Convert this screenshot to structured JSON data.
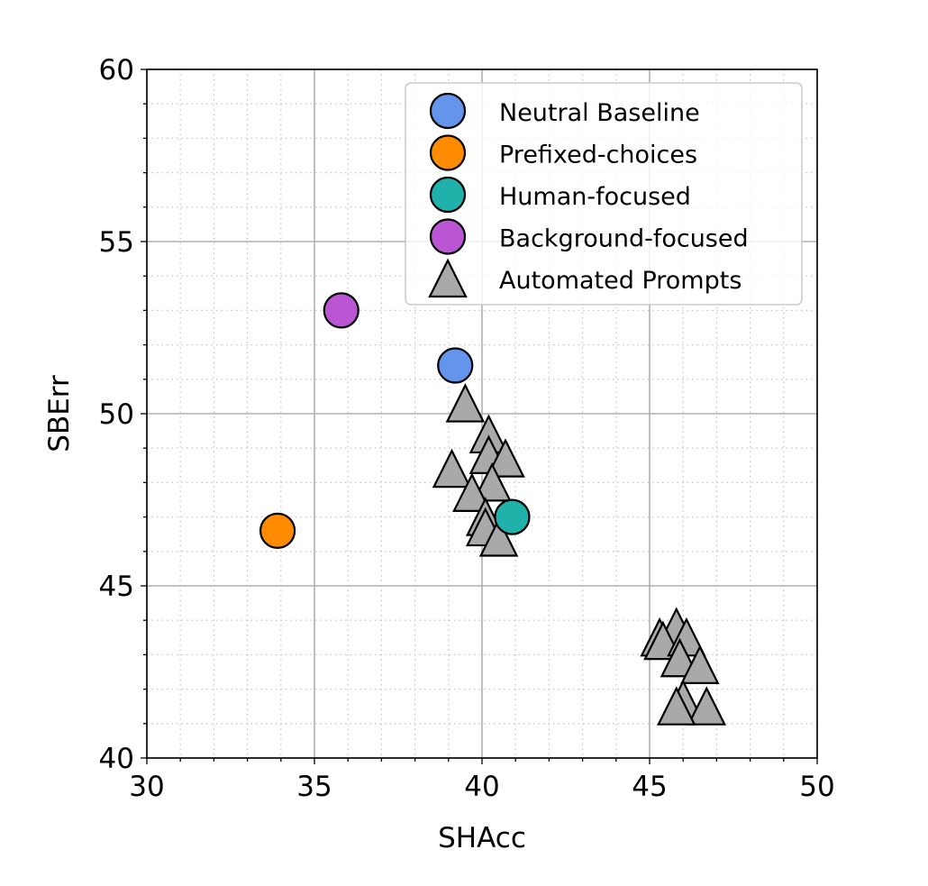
{
  "chart_data": {
    "type": "scatter",
    "title": "",
    "xlabel": "SHAcc",
    "ylabel": "SBErr",
    "xlim": [
      30,
      50
    ],
    "ylim": [
      40,
      60
    ],
    "xticks": [
      30,
      35,
      40,
      45,
      50
    ],
    "yticks": [
      40,
      45,
      50,
      55,
      60
    ],
    "grid": {
      "major": true,
      "minor": true,
      "minor_step": 1
    },
    "legend_position": "top-right",
    "series": [
      {
        "name": "Neutral Baseline",
        "marker": "circle",
        "color": "#6495ED",
        "points": [
          [
            39.2,
            51.4
          ]
        ]
      },
      {
        "name": "Prefixed-choices",
        "marker": "circle",
        "color": "#FF8C00",
        "points": [
          [
            33.9,
            46.6
          ]
        ]
      },
      {
        "name": "Human-focused",
        "marker": "circle",
        "color": "#20B2AA",
        "points": [
          [
            40.9,
            47.0
          ]
        ]
      },
      {
        "name": "Background-focused",
        "marker": "circle",
        "color": "#BA55D3",
        "points": [
          [
            35.8,
            53.0
          ]
        ]
      },
      {
        "name": "Automated Prompts",
        "marker": "triangle",
        "color": "#A9A9A9",
        "points": [
          [
            39.5,
            50.3
          ],
          [
            40.2,
            49.4
          ],
          [
            40.2,
            48.8
          ],
          [
            40.7,
            48.7
          ],
          [
            39.1,
            48.4
          ],
          [
            40.3,
            48.0
          ],
          [
            39.7,
            47.7
          ],
          [
            40.1,
            47.0
          ],
          [
            40.1,
            46.7
          ],
          [
            40.5,
            46.4
          ],
          [
            45.3,
            43.5
          ],
          [
            45.8,
            43.8
          ],
          [
            45.4,
            43.4
          ],
          [
            46.1,
            43.5
          ],
          [
            45.9,
            42.9
          ],
          [
            46.5,
            42.7
          ],
          [
            46.0,
            41.7
          ],
          [
            46.7,
            41.5
          ],
          [
            45.8,
            41.5
          ]
        ]
      }
    ]
  }
}
